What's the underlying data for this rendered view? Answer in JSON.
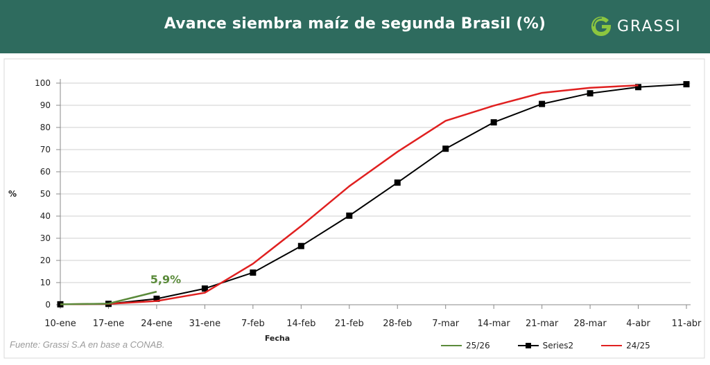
{
  "header": {
    "title": "Avance siembra maíz de segunda Brasil (%)",
    "brand": "GRASSI",
    "brand_icon": "grassi-leaf-logo-icon",
    "background_color": "#2e6b5e"
  },
  "footer": {
    "source": "Fuente: Grassi S.A en base a CONAB."
  },
  "chart_data": {
    "type": "line",
    "title": "Avance siembra maíz de segunda Brasil (%)",
    "xlabel": "Fecha",
    "ylabel": "%",
    "ylim": [
      0,
      100
    ],
    "yticks": [
      0,
      10,
      20,
      30,
      40,
      50,
      60,
      70,
      80,
      90,
      100
    ],
    "grid": true,
    "legend_position": "bottom-right",
    "categories": [
      "10-ene",
      "17-ene",
      "24-ene",
      "31-ene",
      "7-feb",
      "14-feb",
      "21-feb",
      "28-feb",
      "7-mar",
      "14-mar",
      "21-mar",
      "28-mar",
      "4-abr",
      "11-abr"
    ],
    "series": [
      {
        "name": "25/26",
        "color": "#5a8a3a",
        "markers": false,
        "values": [
          0.2,
          0.5,
          5.9,
          null,
          null,
          null,
          null,
          null,
          null,
          null,
          null,
          null,
          null,
          null
        ]
      },
      {
        "name": "Series2",
        "color": "#000000",
        "markers": true,
        "values": [
          0.2,
          0.4,
          2.7,
          7.3,
          14.5,
          26.5,
          40.2,
          55.1,
          70.4,
          82.3,
          90.6,
          95.4,
          98.2,
          99.5
        ]
      },
      {
        "name": "24/25",
        "color": "#e02020",
        "markers": false,
        "values": [
          0.2,
          0.4,
          1.7,
          5.4,
          18.5,
          35.5,
          53.5,
          69.0,
          83.0,
          89.8,
          95.6,
          97.9,
          99.0,
          null
        ]
      }
    ],
    "annotations": [
      {
        "text": "5,9%",
        "x": "24-ene",
        "y": 5.9,
        "color": "#5a8a3a"
      }
    ]
  }
}
